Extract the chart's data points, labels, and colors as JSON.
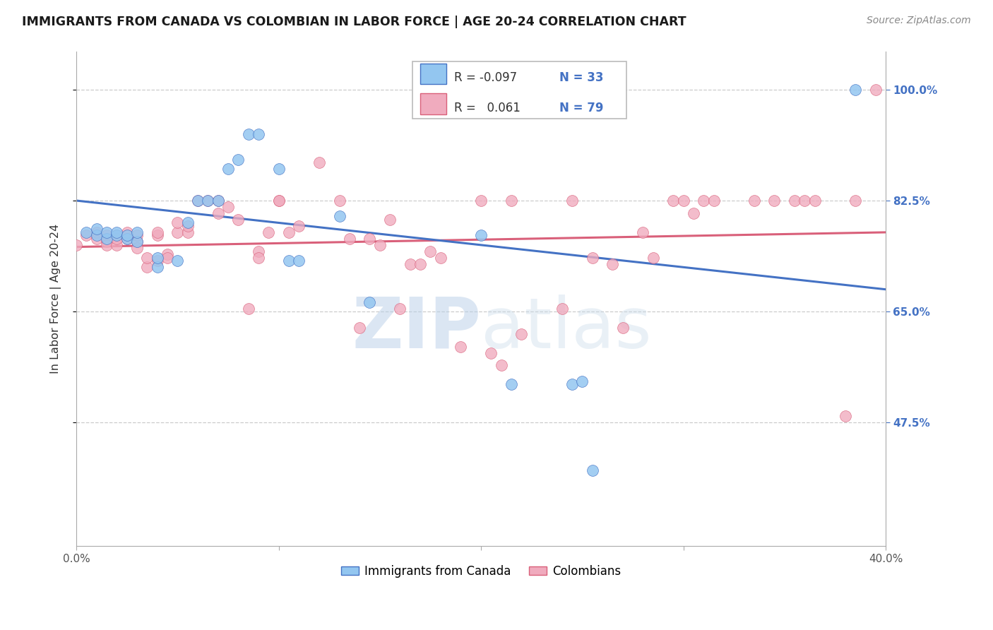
{
  "title": "IMMIGRANTS FROM CANADA VS COLOMBIAN IN LABOR FORCE | AGE 20-24 CORRELATION CHART",
  "source": "Source: ZipAtlas.com",
  "ylabel": "In Labor Force | Age 20-24",
  "xlim": [
    0.0,
    0.4
  ],
  "ylim": [
    0.28,
    1.06
  ],
  "ytick_positions": [
    0.475,
    0.65,
    0.825,
    1.0
  ],
  "ytick_labels": [
    "47.5%",
    "65.0%",
    "82.5%",
    "100.0%"
  ],
  "grid_color": "#cccccc",
  "background_color": "#ffffff",
  "blue_color": "#93C6F0",
  "pink_color": "#F0ABBE",
  "blue_line_color": "#4472C4",
  "pink_line_color": "#D9607A",
  "legend_R_blue": "-0.097",
  "legend_N_blue": "33",
  "legend_R_pink": "0.061",
  "legend_N_pink": "79",
  "label_blue": "Immigrants from Canada",
  "label_pink": "Colombians",
  "watermark_zip": "ZIP",
  "watermark_atlas": "atlas",
  "canada_x": [
    0.005,
    0.01,
    0.01,
    0.015,
    0.015,
    0.02,
    0.02,
    0.025,
    0.025,
    0.03,
    0.03,
    0.04,
    0.04,
    0.05,
    0.055,
    0.06,
    0.065,
    0.07,
    0.075,
    0.08,
    0.085,
    0.09,
    0.1,
    0.105,
    0.11,
    0.13,
    0.145,
    0.2,
    0.215,
    0.245,
    0.25,
    0.255,
    0.385
  ],
  "canada_y": [
    0.775,
    0.77,
    0.78,
    0.765,
    0.775,
    0.77,
    0.775,
    0.765,
    0.77,
    0.76,
    0.775,
    0.72,
    0.735,
    0.73,
    0.79,
    0.825,
    0.825,
    0.825,
    0.875,
    0.89,
    0.93,
    0.93,
    0.875,
    0.73,
    0.73,
    0.8,
    0.665,
    0.77,
    0.535,
    0.535,
    0.54,
    0.4,
    1.0
  ],
  "colombia_x": [
    0.0,
    0.005,
    0.01,
    0.01,
    0.015,
    0.015,
    0.015,
    0.02,
    0.02,
    0.02,
    0.025,
    0.025,
    0.025,
    0.03,
    0.03,
    0.03,
    0.035,
    0.035,
    0.04,
    0.04,
    0.04,
    0.045,
    0.045,
    0.05,
    0.05,
    0.055,
    0.055,
    0.06,
    0.065,
    0.07,
    0.07,
    0.075,
    0.08,
    0.085,
    0.09,
    0.09,
    0.095,
    0.1,
    0.1,
    0.105,
    0.11,
    0.12,
    0.13,
    0.135,
    0.14,
    0.145,
    0.15,
    0.155,
    0.16,
    0.165,
    0.17,
    0.175,
    0.18,
    0.19,
    0.2,
    0.205,
    0.21,
    0.215,
    0.22,
    0.24,
    0.245,
    0.255,
    0.265,
    0.27,
    0.28,
    0.285,
    0.295,
    0.3,
    0.305,
    0.31,
    0.315,
    0.335,
    0.345,
    0.355,
    0.36,
    0.365,
    0.38,
    0.385,
    0.395
  ],
  "colombia_y": [
    0.755,
    0.77,
    0.775,
    0.765,
    0.77,
    0.76,
    0.755,
    0.77,
    0.755,
    0.765,
    0.765,
    0.77,
    0.775,
    0.76,
    0.75,
    0.77,
    0.72,
    0.735,
    0.73,
    0.77,
    0.775,
    0.74,
    0.735,
    0.775,
    0.79,
    0.775,
    0.785,
    0.825,
    0.825,
    0.825,
    0.805,
    0.815,
    0.795,
    0.655,
    0.745,
    0.735,
    0.775,
    0.825,
    0.825,
    0.775,
    0.785,
    0.885,
    0.825,
    0.765,
    0.625,
    0.765,
    0.755,
    0.795,
    0.655,
    0.725,
    0.725,
    0.745,
    0.735,
    0.595,
    0.825,
    0.585,
    0.565,
    0.825,
    0.615,
    0.655,
    0.825,
    0.735,
    0.725,
    0.625,
    0.775,
    0.735,
    0.825,
    0.825,
    0.805,
    0.825,
    0.825,
    0.825,
    0.825,
    0.825,
    0.825,
    0.825,
    0.485,
    0.825,
    1.0
  ]
}
